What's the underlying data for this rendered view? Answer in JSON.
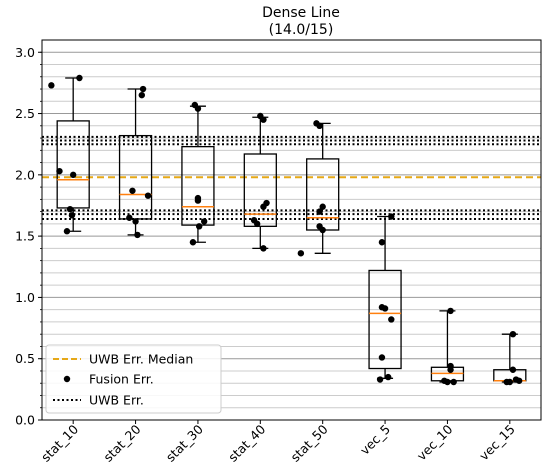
{
  "chart_data": {
    "type": "box",
    "title": "Dense Line",
    "subtitle": "(14.0/15)",
    "categories": [
      "stat_10",
      "stat_20",
      "stat_30",
      "stat_40",
      "stat_50",
      "vec_5",
      "vec_10",
      "vec_15"
    ],
    "ylim": [
      0.0,
      3.1
    ],
    "yticks": [
      "0.0",
      "0.5",
      "1.0",
      "1.5",
      "2.0",
      "2.5",
      "3.0"
    ],
    "ytick_values": [
      0.0,
      0.5,
      1.0,
      1.5,
      2.0,
      2.5,
      3.0
    ],
    "minor_step": 0.1,
    "grid": "horizontal major and minor",
    "boxes": [
      {
        "whisker_low": 1.54,
        "q1": 1.73,
        "median": 1.96,
        "q3": 2.44,
        "whisker_high": 2.79
      },
      {
        "whisker_low": 1.51,
        "q1": 1.64,
        "median": 1.84,
        "q3": 2.32,
        "whisker_high": 2.7
      },
      {
        "whisker_low": 1.45,
        "q1": 1.59,
        "median": 1.74,
        "q3": 2.23,
        "whisker_high": 2.56
      },
      {
        "whisker_low": 1.4,
        "q1": 1.58,
        "median": 1.68,
        "q3": 2.17,
        "whisker_high": 2.47
      },
      {
        "whisker_low": 1.36,
        "q1": 1.55,
        "median": 1.65,
        "q3": 2.13,
        "whisker_high": 2.42
      },
      {
        "whisker_low": 0.34,
        "q1": 0.42,
        "median": 0.87,
        "q3": 1.22,
        "whisker_high": 1.66
      },
      {
        "whisker_low": 0.31,
        "q1": 0.32,
        "median": 0.38,
        "q3": 0.43,
        "whisker_high": 0.89
      },
      {
        "whisker_low": 0.31,
        "q1": 0.32,
        "median": 0.32,
        "q3": 0.41,
        "whisker_high": 0.7
      }
    ],
    "points": [
      [
        [
          -0.35,
          2.73
        ],
        [
          0.1,
          2.79
        ],
        [
          -0.22,
          2.03
        ],
        [
          0.0,
          2.0
        ],
        [
          -0.05,
          1.72
        ],
        [
          -0.02,
          1.67
        ],
        [
          -0.1,
          1.54
        ]
      ],
      [
        [
          0.12,
          2.7
        ],
        [
          0.1,
          2.65
        ],
        [
          -0.05,
          1.87
        ],
        [
          0.2,
          1.83
        ],
        [
          -0.1,
          1.65
        ],
        [
          0.0,
          1.62
        ],
        [
          0.03,
          1.51
        ]
      ],
      [
        [
          -0.05,
          2.57
        ],
        [
          0.0,
          2.54
        ],
        [
          0.0,
          1.81
        ],
        [
          0.0,
          1.79
        ],
        [
          0.1,
          1.62
        ],
        [
          0.02,
          1.58
        ],
        [
          -0.08,
          1.45
        ]
      ],
      [
        [
          0.0,
          2.48
        ],
        [
          0.05,
          2.45
        ],
        [
          0.1,
          1.77
        ],
        [
          0.05,
          1.74
        ],
        [
          -0.1,
          1.63
        ],
        [
          -0.05,
          1.6
        ],
        [
          0.05,
          1.4
        ]
      ],
      [
        [
          -0.1,
          2.42
        ],
        [
          -0.05,
          2.4
        ],
        [
          0.0,
          1.74
        ],
        [
          -0.05,
          1.7
        ],
        [
          -0.05,
          1.58
        ],
        [
          0.0,
          1.55
        ],
        [
          -0.35,
          1.36
        ]
      ],
      [
        [
          0.1,
          1.66
        ],
        [
          -0.05,
          1.45
        ],
        [
          -0.05,
          0.92
        ],
        [
          0.0,
          0.91
        ],
        [
          0.1,
          0.82
        ],
        [
          -0.05,
          0.51
        ],
        [
          0.05,
          0.35
        ],
        [
          -0.08,
          0.33
        ]
      ],
      [
        [
          0.05,
          0.89
        ],
        [
          0.05,
          0.44
        ],
        [
          0.05,
          0.41
        ],
        [
          -0.05,
          0.32
        ],
        [
          0.0,
          0.31
        ],
        [
          0.1,
          0.31
        ]
      ],
      [
        [
          0.05,
          0.7
        ],
        [
          0.05,
          0.41
        ],
        [
          0.1,
          0.33
        ],
        [
          0.15,
          0.32
        ],
        [
          0.0,
          0.31
        ],
        [
          -0.05,
          0.31
        ]
      ]
    ],
    "uwb_median": 1.98,
    "uwb_err_lines": [
      2.31,
      2.28,
      2.25,
      1.71,
      1.68,
      1.64
    ],
    "legend": {
      "placement": "lower-left",
      "items": [
        "UWB Err. Median",
        "Fusion Err.",
        "UWB Err."
      ]
    },
    "colors": {
      "median_line": "#ff7f0e",
      "uwb_median_line": "#e6a817",
      "points": "#000000",
      "box": "#000000",
      "grid_major": "#999999",
      "grid_minor": "#cccccc"
    }
  }
}
